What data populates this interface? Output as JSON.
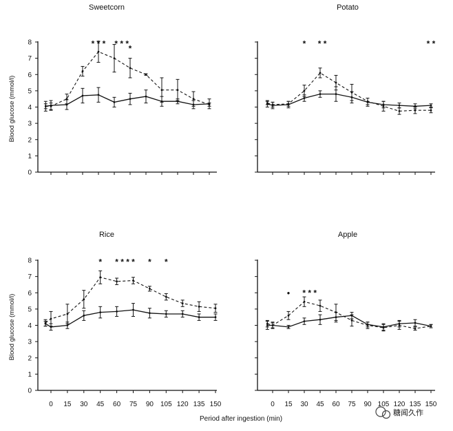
{
  "figure": {
    "x_axis_label": "Period after ingestion (min)",
    "y_axis_label": "Blood glucose (mmol/l)",
    "watermark": "糖闻久作"
  },
  "chart_data": [
    {
      "type": "line",
      "title": "Sweetcorn",
      "xlabel": "",
      "ylabel": "Blood glucose (mmol/l)",
      "x": [
        0,
        15,
        30,
        45,
        60,
        75,
        90,
        105,
        120,
        135,
        150
      ],
      "x_tick_labels": [],
      "ylim": [
        0,
        8
      ],
      "y_ticks": [
        0,
        1,
        2,
        3,
        4,
        5,
        6,
        7,
        8
      ],
      "series": [
        {
          "style": "solid",
          "x": [
            -5,
            0,
            15,
            30,
            45,
            60,
            75,
            90,
            105,
            120,
            135,
            150
          ],
          "values": [
            4.05,
            4.1,
            4.15,
            4.7,
            4.75,
            4.3,
            4.5,
            4.65,
            4.35,
            4.35,
            4.15,
            4.2
          ],
          "errors": [
            0.3,
            0.3,
            0.3,
            0.45,
            0.45,
            0.3,
            0.35,
            0.4,
            0.3,
            0.15,
            0.25,
            0.3
          ]
        },
        {
          "style": "dashed",
          "x": [
            -5,
            0,
            15,
            30,
            45,
            60,
            75,
            90,
            105,
            120,
            135,
            150
          ],
          "values": [
            4.05,
            4.05,
            4.5,
            6.2,
            7.4,
            7.0,
            6.4,
            6.0,
            5.05,
            5.05,
            4.5,
            4.15
          ],
          "errors": [
            0.15,
            0.2,
            0.3,
            0.3,
            0.65,
            0.85,
            0.6,
            0.05,
            0.75,
            0.65,
            0.45,
            0.1
          ]
        }
      ],
      "significance": [
        {
          "x": 45,
          "label": "* * *"
        },
        {
          "x": 67,
          "label": "* * *"
        },
        {
          "x": 75,
          "label": "*",
          "y": 7.6
        }
      ]
    },
    {
      "type": "line",
      "title": "Potato",
      "xlabel": "",
      "ylabel": "",
      "x": [
        0,
        15,
        30,
        45,
        60,
        75,
        90,
        105,
        120,
        135,
        150
      ],
      "x_tick_labels": [],
      "ylim": [
        0,
        8
      ],
      "y_ticks": [],
      "series": [
        {
          "style": "solid",
          "x": [
            -5,
            0,
            15,
            30,
            45,
            60,
            75,
            90,
            105,
            120,
            135,
            150
          ],
          "values": [
            4.2,
            4.1,
            4.15,
            4.55,
            4.8,
            4.8,
            4.6,
            4.3,
            4.15,
            4.1,
            4.05,
            4.1
          ],
          "errors": [
            0.2,
            0.2,
            0.2,
            0.2,
            0.2,
            0.45,
            0.35,
            0.25,
            0.2,
            0.15,
            0.15,
            0.1
          ]
        },
        {
          "style": "dashed",
          "x": [
            -5,
            0,
            15,
            30,
            45,
            60,
            75,
            90,
            105,
            120,
            135,
            150
          ],
          "values": [
            4.25,
            4.15,
            4.2,
            5.0,
            6.1,
            5.5,
            4.9,
            4.35,
            4.05,
            3.75,
            3.8,
            3.8
          ],
          "errors": [
            0.1,
            0.15,
            0.15,
            0.35,
            0.3,
            0.45,
            0.5,
            0.2,
            0.3,
            0.2,
            0.2,
            0.15
          ]
        }
      ],
      "significance": [
        {
          "x": 30,
          "label": "*"
        },
        {
          "x": 47,
          "label": "* *"
        },
        {
          "x": 150,
          "label": "* *"
        }
      ]
    },
    {
      "type": "line",
      "title": "Rice",
      "xlabel": "",
      "ylabel": "Blood glucose (mmol/l)",
      "x": [
        0,
        15,
        30,
        45,
        60,
        75,
        90,
        105,
        120,
        135,
        150
      ],
      "x_tick_labels": [
        "0",
        "15",
        "30",
        "45",
        "60",
        "75",
        "90",
        "105",
        "120",
        "135",
        "150"
      ],
      "ylim": [
        0,
        8
      ],
      "y_ticks": [
        0,
        1,
        2,
        3,
        4,
        5,
        6,
        7,
        8
      ],
      "series": [
        {
          "style": "solid",
          "x": [
            -5,
            0,
            15,
            30,
            45,
            60,
            75,
            90,
            105,
            120,
            135,
            150
          ],
          "values": [
            4.1,
            3.9,
            4.0,
            4.6,
            4.8,
            4.85,
            4.95,
            4.75,
            4.7,
            4.7,
            4.5,
            4.5
          ],
          "errors": [
            0.15,
            0.2,
            0.2,
            0.3,
            0.35,
            0.3,
            0.4,
            0.3,
            0.2,
            0.2,
            0.2,
            0.2
          ]
        },
        {
          "style": "dashed",
          "x": [
            -5,
            0,
            15,
            30,
            45,
            60,
            75,
            90,
            105,
            120,
            135,
            150
          ],
          "values": [
            4.15,
            4.4,
            4.7,
            5.6,
            6.95,
            6.7,
            6.75,
            6.25,
            5.75,
            5.35,
            5.15,
            5.05
          ],
          "errors": [
            0.2,
            0.45,
            0.6,
            0.55,
            0.4,
            0.2,
            0.2,
            0.15,
            0.2,
            0.2,
            0.3,
            0.25
          ]
        }
      ],
      "significance": [
        {
          "x": 45,
          "label": "*"
        },
        {
          "x": 65,
          "label": "* * *"
        },
        {
          "x": 75,
          "label": "*"
        },
        {
          "x": 90,
          "label": "*"
        },
        {
          "x": 105,
          "label": "*"
        }
      ]
    },
    {
      "type": "line",
      "title": "Apple",
      "xlabel": "",
      "ylabel": "",
      "x": [
        0,
        15,
        30,
        45,
        60,
        75,
        90,
        105,
        120,
        135,
        150
      ],
      "x_tick_labels": [
        "0",
        "15",
        "30",
        "45",
        "60",
        "75",
        "90",
        "105",
        "120",
        "135",
        "150"
      ],
      "ylim": [
        0,
        8
      ],
      "y_ticks": [],
      "series": [
        {
          "style": "solid",
          "x": [
            -5,
            0,
            15,
            30,
            45,
            60,
            75,
            90,
            105,
            120,
            135,
            150
          ],
          "values": [
            4.0,
            4.0,
            3.9,
            4.25,
            4.35,
            4.5,
            4.6,
            4.05,
            3.9,
            4.1,
            4.15,
            3.95
          ],
          "errors": [
            0.25,
            0.15,
            0.1,
            0.2,
            0.3,
            0.3,
            0.2,
            0.15,
            0.2,
            0.2,
            0.2,
            0.1
          ]
        },
        {
          "style": "dashed",
          "x": [
            -5,
            0,
            15,
            30,
            45,
            60,
            75,
            90,
            105,
            120,
            135,
            150
          ],
          "values": [
            4.1,
            4.0,
            4.6,
            5.45,
            5.2,
            4.8,
            4.3,
            4.0,
            3.85,
            4.0,
            3.8,
            3.95
          ],
          "errors": [
            0.2,
            0.2,
            0.25,
            0.3,
            0.35,
            0.5,
            0.35,
            0.2,
            0.2,
            0.25,
            0.1,
            0.1
          ]
        }
      ],
      "significance": [
        {
          "x": 15,
          "label": "•",
          "y": 6.0
        },
        {
          "x": 35,
          "label": "* * *",
          "y": 6.0
        }
      ]
    }
  ],
  "colors": {
    "ink": "#111111",
    "background": "#ffffff"
  }
}
